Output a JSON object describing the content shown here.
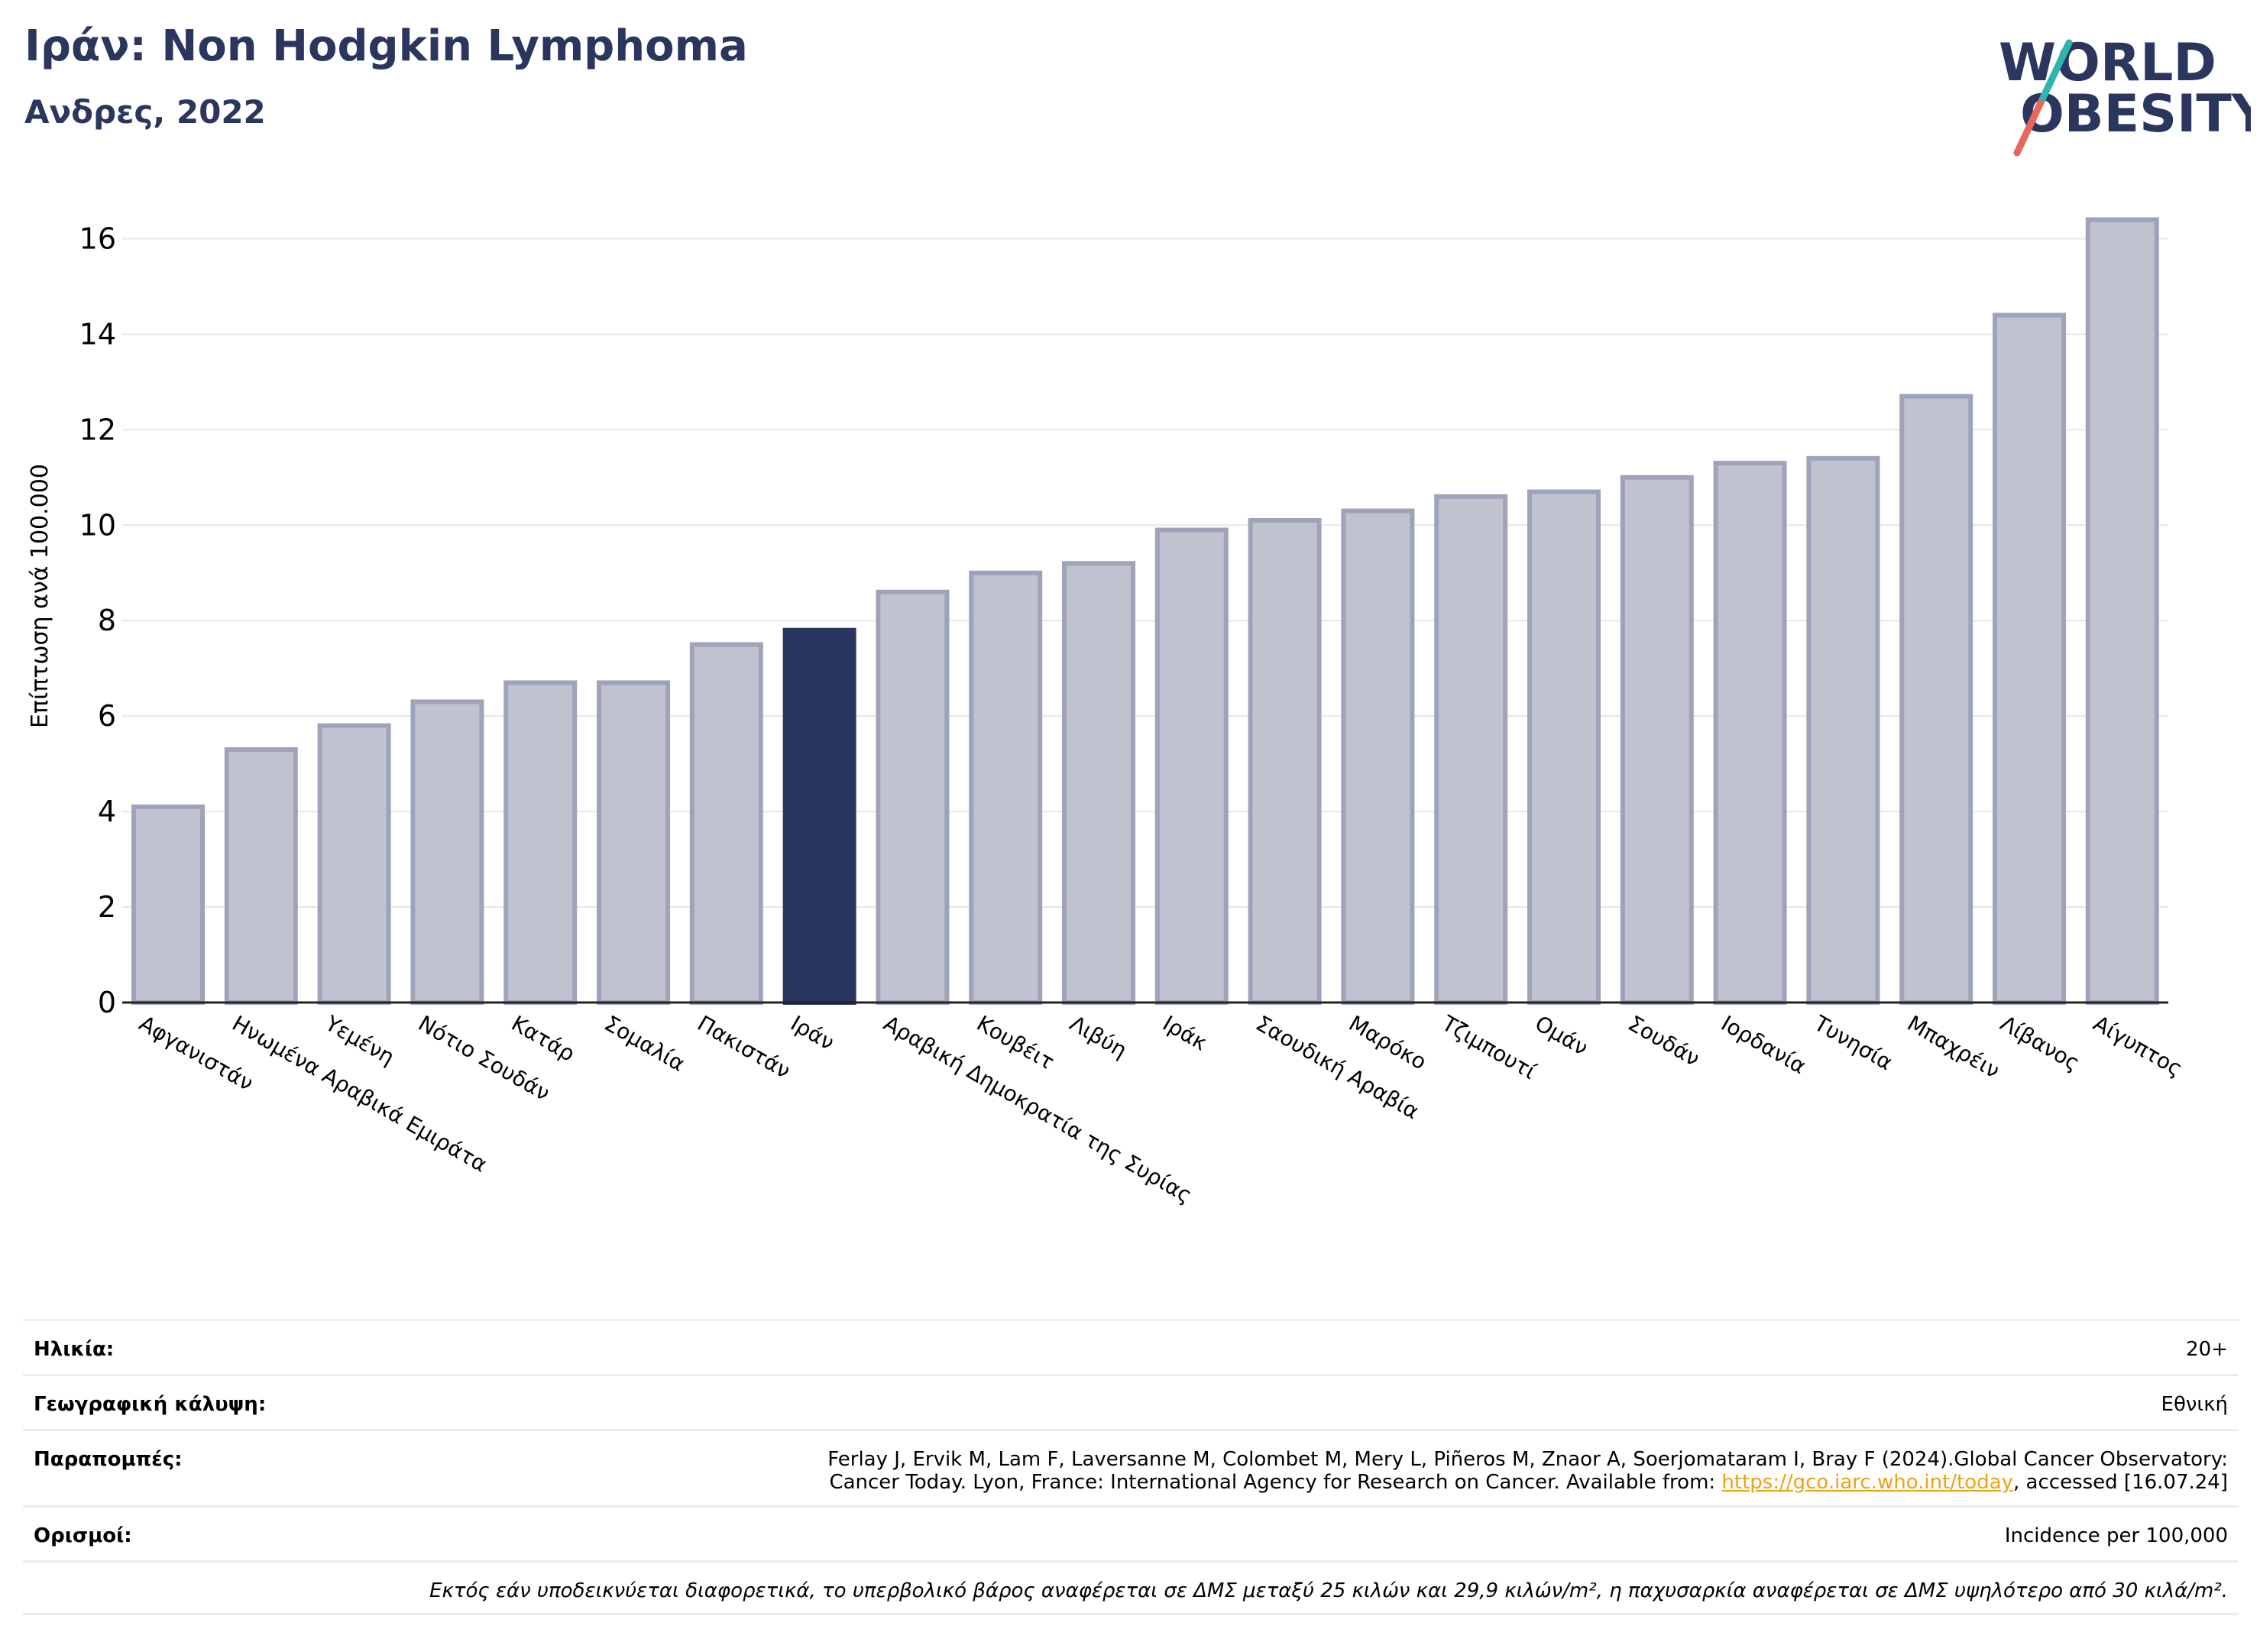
{
  "header": {
    "title": "Ιράν: Non Hodgkin Lymphoma",
    "subtitle": "Ανδρες, 2022"
  },
  "logo": {
    "line1": "WORLD",
    "line2": "OBESITY"
  },
  "colors": {
    "highlight": "#2b365f",
    "bar": "#bfc2cf",
    "bar_edge": "#9ea3b9",
    "accent_teal": "#2fb5b0",
    "accent_red": "#e8665a"
  },
  "chart_data": {
    "type": "bar",
    "title": "",
    "xlabel": "",
    "ylabel": "Επίπτωση ανά 100.000",
    "ylim": [
      0,
      17
    ],
    "yticks": [
      0,
      2,
      4,
      6,
      8,
      10,
      12,
      14,
      16
    ],
    "grid": true,
    "highlight": "Ιράν",
    "categories": [
      "Αφγανιστάν",
      "Ηνωμένα Αραβικά Εμιράτα",
      "Υεμένη",
      "Νότιο Σουδάν",
      "Κατάρ",
      "Σομαλία",
      "Πακιστάν",
      "Ιράν",
      "Αραβική Δημοκρατία της Συρίας",
      "Κουβέιτ",
      "Λιβύη",
      "Ιράκ",
      "Σαουδική Αραβία",
      "Μαρόκο",
      "Τζιμπουτί",
      "Ομάν",
      "Σουδάν",
      "Ιορδανία",
      "Τυνησία",
      "Μπαχρέιν",
      "Λίβανος",
      "Αίγυπτος"
    ],
    "values": [
      4.1,
      5.3,
      5.8,
      6.3,
      6.7,
      6.7,
      7.5,
      7.8,
      8.6,
      9.0,
      9.2,
      9.9,
      10.1,
      10.3,
      10.6,
      10.7,
      11.0,
      11.3,
      11.4,
      12.7,
      14.4,
      16.4
    ]
  },
  "footer": {
    "age_label": "Ηλικία:",
    "age_value": "20+",
    "coverage_label": "Γεωγραφική κάλυψη:",
    "coverage_value": "Εθνική",
    "refs_label": "Παραπομπές:",
    "refs_line1": "Ferlay J, Ervik M, Lam F, Laversanne M, Colombet M, Mery L, Piñeros M, Znaor A, Soerjomataram I, Bray F (2024).Global Cancer Observatory:",
    "refs_line2_pre": "Cancer Today. Lyon, France: International Agency for Research on Cancer. Available from: ",
    "refs_link": "https://gco.iarc.who.int/today",
    "refs_line2_post": ", accessed [16.07.24]",
    "defs_label": "Ορισμοί:",
    "defs_value": "Incidence per 100,000",
    "note": "Εκτός εάν υποδεικνύεται διαφορετικά, το υπερβολικό βάρος αναφέρεται σε ΔΜΣ μεταξύ 25 κιλών και 29,9 κιλών/m², η παχυσαρκία αναφέρεται σε ΔΜΣ υψηλότερο από 30 κιλά/m²."
  }
}
